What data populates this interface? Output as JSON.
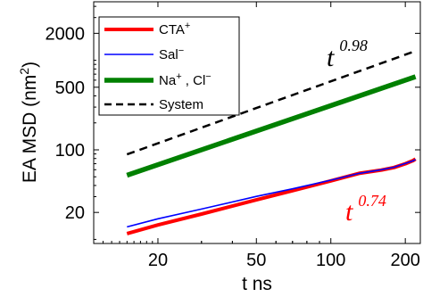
{
  "chart_data": {
    "type": "line",
    "xscale": "log",
    "yscale": "log",
    "xlabel": "t ns",
    "ylabel": "EA MSD (nm²)",
    "ylabel_main": "EA MSD (nm",
    "ylabel_sup": "2",
    "ylabel_end": ")",
    "xlim": [
      11,
      230
    ],
    "ylim": [
      9,
      4500
    ],
    "xticks": [
      20,
      50,
      100,
      200
    ],
    "xtick_labels": [
      "20",
      "50",
      "100",
      "200"
    ],
    "yticks": [
      20,
      100,
      500,
      2000
    ],
    "ytick_labels": [
      "20",
      "100",
      "500",
      "2000"
    ],
    "grid": false,
    "legend_position": "top-left",
    "series": [
      {
        "name": "CTA+",
        "legend_main": "CTA",
        "legend_sup": "+",
        "color": "#ff0000",
        "style": "solid",
        "x": [
          15,
          20,
          30,
          50,
          70,
          100,
          130,
          160,
          180,
          200,
          215,
          220
        ],
        "y": [
          11.6,
          14.5,
          19.2,
          27.6,
          35.0,
          45.0,
          54.6,
          59.4,
          63.5,
          70.0,
          76.0,
          79.0
        ]
      },
      {
        "name": "Sal−",
        "legend_main": "Sal",
        "legend_sup": "−",
        "color": "#0000ff",
        "style": "solid",
        "x": [
          15,
          20,
          30,
          50,
          70,
          100,
          130,
          160,
          180,
          200,
          215,
          220
        ],
        "y": [
          13.8,
          17.0,
          21.8,
          30.2,
          36.7,
          45.9,
          54.6,
          60.0,
          64.0,
          70.5,
          75.5,
          78.0
        ]
      },
      {
        "name": "Na+ , Cl−",
        "legend_main": "Na",
        "legend_sup1": "+",
        "legend_mid": " , Cl",
        "legend_sup2": "−",
        "color": "#008000",
        "style": "solid",
        "x": [
          15,
          220
        ],
        "y": [
          52,
          655
        ]
      },
      {
        "name": "System",
        "legend_main": "System",
        "color": "#000000",
        "style": "dashed",
        "x": [
          15,
          220
        ],
        "y": [
          89,
          1270
        ]
      }
    ],
    "annotations": [
      {
        "base": "t",
        "exp": "0.98",
        "color": "#000000"
      },
      {
        "base": "t",
        "exp": "0.74",
        "color": "#ff0000"
      }
    ]
  }
}
